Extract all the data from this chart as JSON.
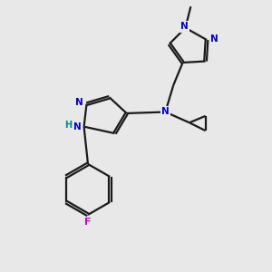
{
  "bg_color": "#e8e8e8",
  "bond_color": "#1a1a1a",
  "N_color": "#0000cc",
  "F_color": "#cc00cc",
  "H_color": "#008888",
  "line_width": 1.6,
  "figsize": [
    3.0,
    3.0
  ],
  "dpi": 100,
  "xlim": [
    0,
    10
  ],
  "ylim": [
    0,
    10
  ]
}
